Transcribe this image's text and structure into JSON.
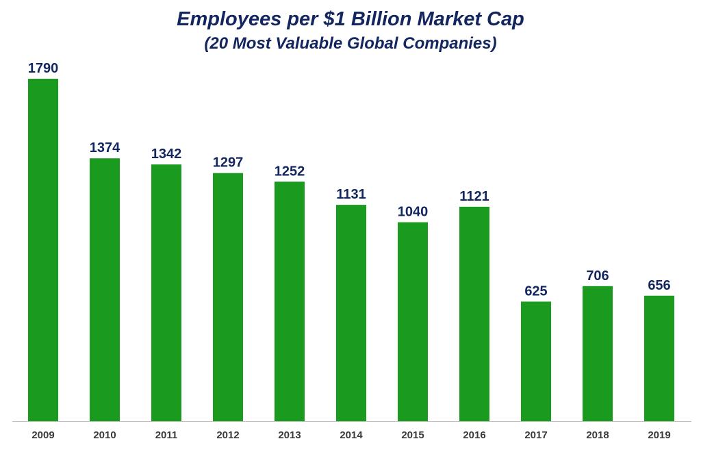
{
  "chart": {
    "title": "Employees per $1 Billion Market Cap",
    "subtitle": "(20 Most Valuable Global Companies)"
  },
  "colors": {
    "bar": "#1a9a1f",
    "label": "#13265f",
    "axis": "#bfbfbf"
  },
  "chart_data": {
    "type": "bar",
    "title": "Employees per $1 Billion Market Cap",
    "subtitle": "(20 Most Valuable Global Companies)",
    "categories": [
      "2009",
      "2010",
      "2011",
      "2012",
      "2013",
      "2014",
      "2015",
      "2016",
      "2017",
      "2018",
      "2019"
    ],
    "values": [
      1790,
      1374,
      1342,
      1297,
      1252,
      1131,
      1040,
      1121,
      625,
      706,
      656
    ],
    "xlabel": "",
    "ylabel": "",
    "ylim": [
      0,
      1790
    ],
    "grid": false,
    "legend": "none",
    "data_labels": true
  }
}
